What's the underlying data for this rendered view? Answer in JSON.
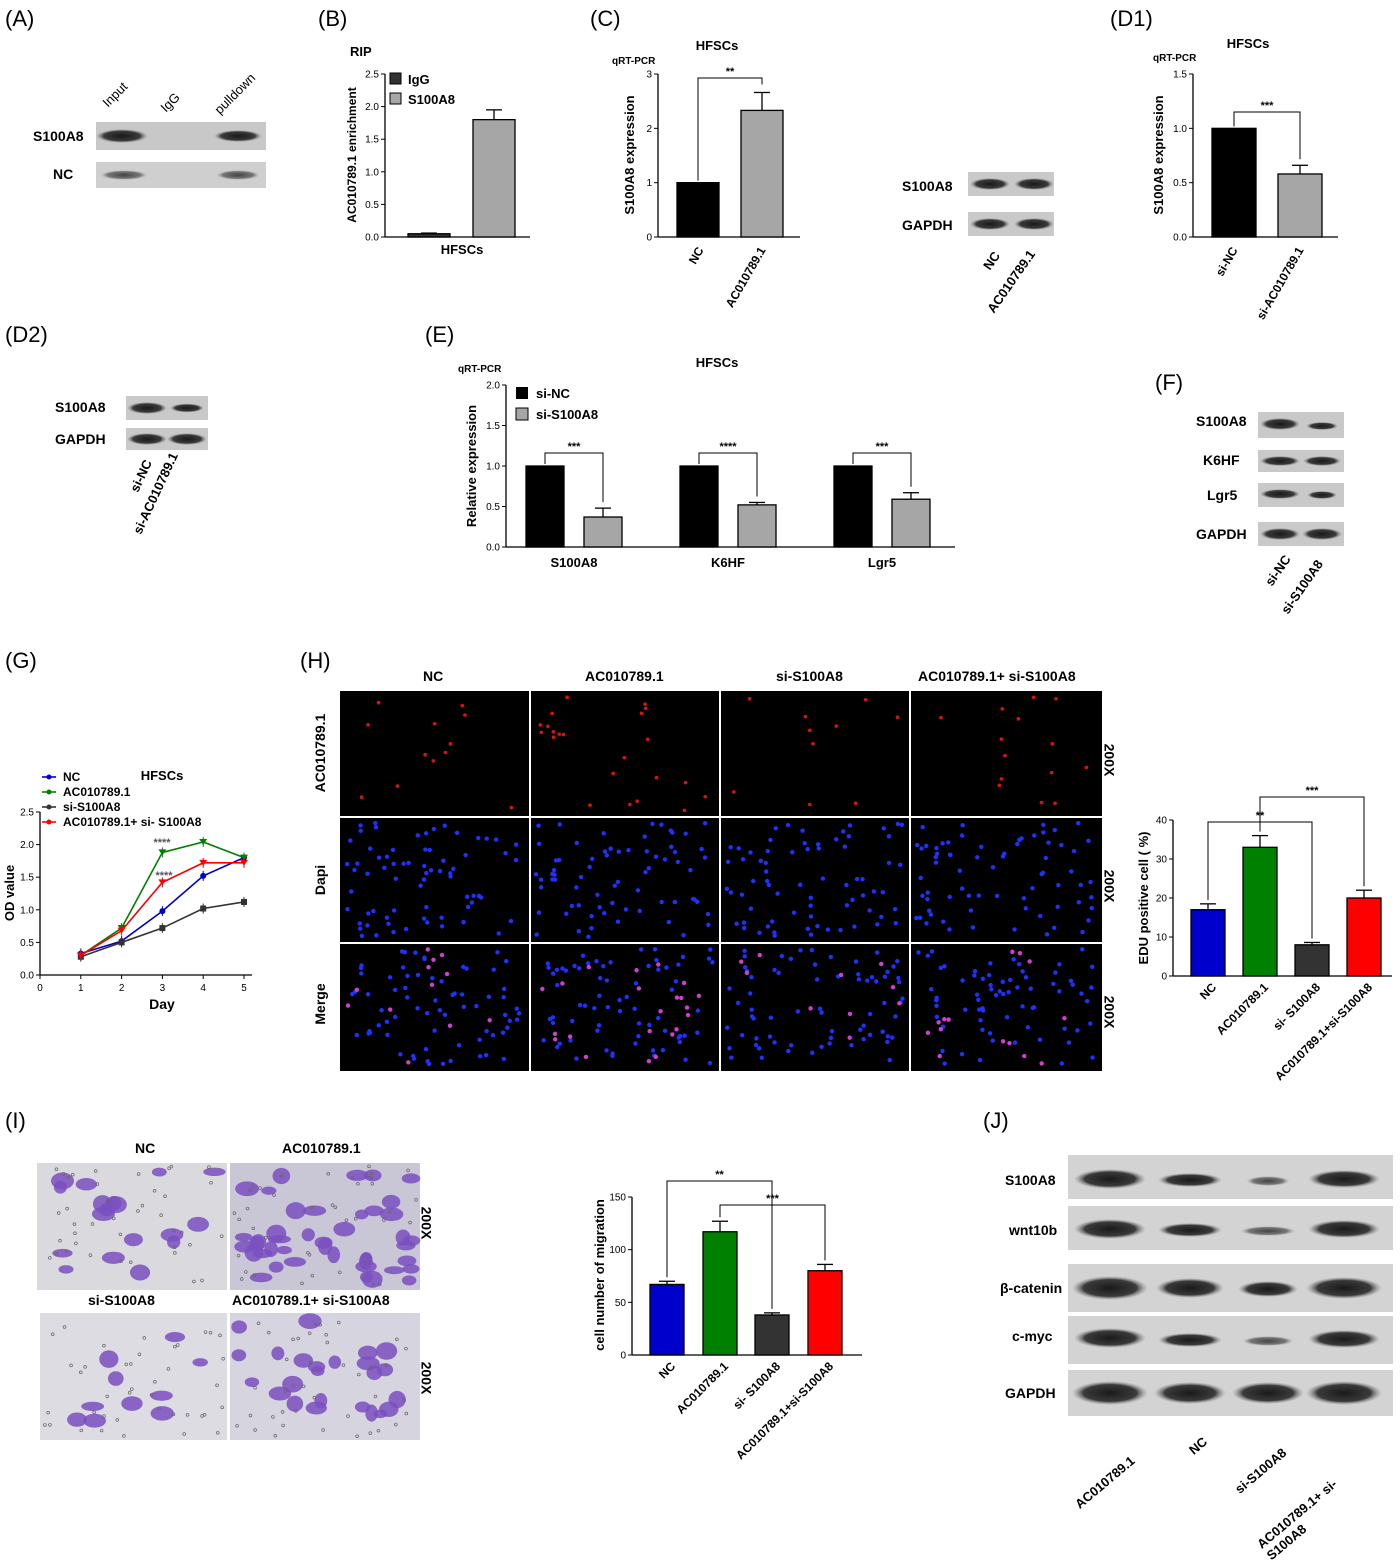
{
  "panel_labels": [
    "(A)",
    "(B)",
    "(C)",
    "(D1)",
    "(D2)",
    "(E)",
    "(F)",
    "(G)",
    "(H)",
    "(I)",
    "(J)"
  ],
  "colors": {
    "black": "#000000",
    "gray": "#a6a6a6",
    "blue": "#0000cc",
    "green": "#008000",
    "dark": "#333333",
    "red": "#ff0000"
  },
  "panel_a": {
    "lanes": [
      "Input",
      "IgG",
      "pulldown"
    ],
    "rows": [
      "S100A8",
      "NC"
    ]
  },
  "panel_c_blot": {
    "rows": [
      "S100A8",
      "GAPDH"
    ],
    "lanes": [
      "NC",
      "AC010789.1"
    ]
  },
  "panel_d2": {
    "rows": [
      "S100A8",
      "GAPDH"
    ],
    "lanes": [
      "si-NC",
      "si-AC010789.1"
    ]
  },
  "panel_f": {
    "rows": [
      "S100A8",
      "K6HF",
      "Lgr5",
      "GAPDH"
    ],
    "lanes": [
      "si-NC",
      "si-S100A8"
    ]
  },
  "panel_h": {
    "columns": [
      "NC",
      "AC010789.1",
      "si-S100A8",
      "AC010789.1+ si-S100A8"
    ],
    "rows": [
      "AC010789.1",
      "Dapi",
      "Merge"
    ],
    "magnification": "200X"
  },
  "panel_i": {
    "labels": [
      "NC",
      "AC010789.1",
      "si-S100A8",
      "AC010789.1+ si-S100A8"
    ],
    "magnification": "200X"
  },
  "panel_j": {
    "rows": [
      "S100A8",
      "wnt10b",
      "β-catenin",
      "c-myc",
      "GAPDH"
    ],
    "lanes": [
      "AC010789.1",
      "NC",
      "si-S100A8",
      "AC010789.1+ si-S100A8"
    ]
  },
  "chart_data": [
    {
      "id": "B",
      "type": "bar",
      "title": "RIP",
      "ylabel": "AC010789.1 enrichment",
      "xlabel": "HFSCs",
      "ylim": [
        0,
        2.5
      ],
      "yticks": [
        "0.0",
        "0.5",
        "1.0",
        "1.5",
        "2.0",
        "2.5"
      ],
      "series": [
        {
          "name": "IgG",
          "values": [
            0.05
          ],
          "error": [
            0.01
          ]
        },
        {
          "name": "S100A8",
          "values": [
            1.8
          ],
          "error": [
            0.15
          ]
        }
      ],
      "legend": "top-left"
    },
    {
      "id": "C",
      "type": "bar",
      "title": "HFSCs",
      "method": "qRT-PCR",
      "ylabel": "S100A8  expression",
      "ylim": [
        0,
        3
      ],
      "yticks": [
        "0",
        "1",
        "2",
        "3"
      ],
      "categories": [
        "NC",
        "AC010789.1"
      ],
      "values": [
        1.0,
        2.33
      ],
      "error": [
        0,
        0.33
      ],
      "significance": "**"
    },
    {
      "id": "D1",
      "type": "bar",
      "title": "HFSCs",
      "method": "qRT-PCR",
      "ylabel": "S100A8 expression",
      "ylim": [
        0,
        1.5
      ],
      "yticks": [
        "0.0",
        "0.5",
        "1.0",
        "1.5"
      ],
      "categories": [
        "si-NC",
        "si-AC010789.1"
      ],
      "values": [
        1.0,
        0.58
      ],
      "error": [
        0,
        0.08
      ],
      "significance": "***"
    },
    {
      "id": "E",
      "type": "bar",
      "title": "HFSCs",
      "method": "qRT-PCR",
      "ylabel": "Relative  expression",
      "ylim": [
        0,
        2.0
      ],
      "yticks": [
        "0.0",
        "0.5",
        "1.0",
        "1.5",
        "2.0"
      ],
      "categories": [
        "S100A8",
        "K6HF",
        "Lgr5"
      ],
      "series": [
        {
          "name": "si-NC",
          "values": [
            1.0,
            1.0,
            1.0
          ],
          "error": [
            0,
            0,
            0
          ]
        },
        {
          "name": "si-S100A8",
          "values": [
            0.37,
            0.52,
            0.59
          ],
          "error": [
            0.11,
            0.03,
            0.08
          ]
        }
      ],
      "significance": [
        "***",
        "****",
        "***"
      ],
      "legend": "top-left"
    },
    {
      "id": "G",
      "type": "line",
      "title": "HFSCs",
      "xlabel": "Day",
      "ylabel": "OD value",
      "xlim": [
        0,
        5
      ],
      "xticks": [
        "0",
        "1",
        "2",
        "3",
        "4",
        "5"
      ],
      "ylim": [
        0,
        2.5
      ],
      "yticks": [
        "0.0",
        "0.5",
        "1.0",
        "1.5",
        "2.0",
        "2.5"
      ],
      "x": [
        1,
        2,
        3,
        4,
        5
      ],
      "series": [
        {
          "name": "NC",
          "values": [
            0.33,
            0.52,
            0.98,
            1.52,
            1.8
          ]
        },
        {
          "name": "AC010789.1",
          "values": [
            0.3,
            0.72,
            1.88,
            2.04,
            1.8
          ]
        },
        {
          "name": "si-S100A8",
          "values": [
            0.28,
            0.5,
            0.72,
            1.02,
            1.12
          ]
        },
        {
          "name": "AC010789.1+ si- S100A8",
          "values": [
            0.3,
            0.68,
            1.42,
            1.72,
            1.72
          ]
        }
      ],
      "annotations": [
        "****",
        "****"
      ],
      "legend": "top-left"
    },
    {
      "id": "H",
      "type": "bar",
      "ylabel": "EDU positive cell ( %)",
      "ylim": [
        0,
        40
      ],
      "yticks": [
        "0",
        "10",
        "20",
        "30",
        "40"
      ],
      "categories": [
        "NC",
        "AC010789.1",
        "si- S100A8",
        "AC010789.1+si-S100A8"
      ],
      "values": [
        17,
        33,
        8,
        20
      ],
      "error": [
        1.5,
        3,
        0.6,
        2
      ],
      "significance": [
        "**",
        "***"
      ]
    },
    {
      "id": "I",
      "type": "bar",
      "ylabel": "cell number of migration",
      "ylim": [
        0,
        150
      ],
      "yticks": [
        "0",
        "50",
        "100",
        "150"
      ],
      "categories": [
        "NC",
        "AC010789.1",
        "si- S100A8",
        "AC010789.1+si-S100A8"
      ],
      "values": [
        67,
        117,
        38,
        80
      ],
      "error": [
        3,
        10,
        2,
        6
      ],
      "significance": [
        "**",
        "***"
      ]
    }
  ]
}
